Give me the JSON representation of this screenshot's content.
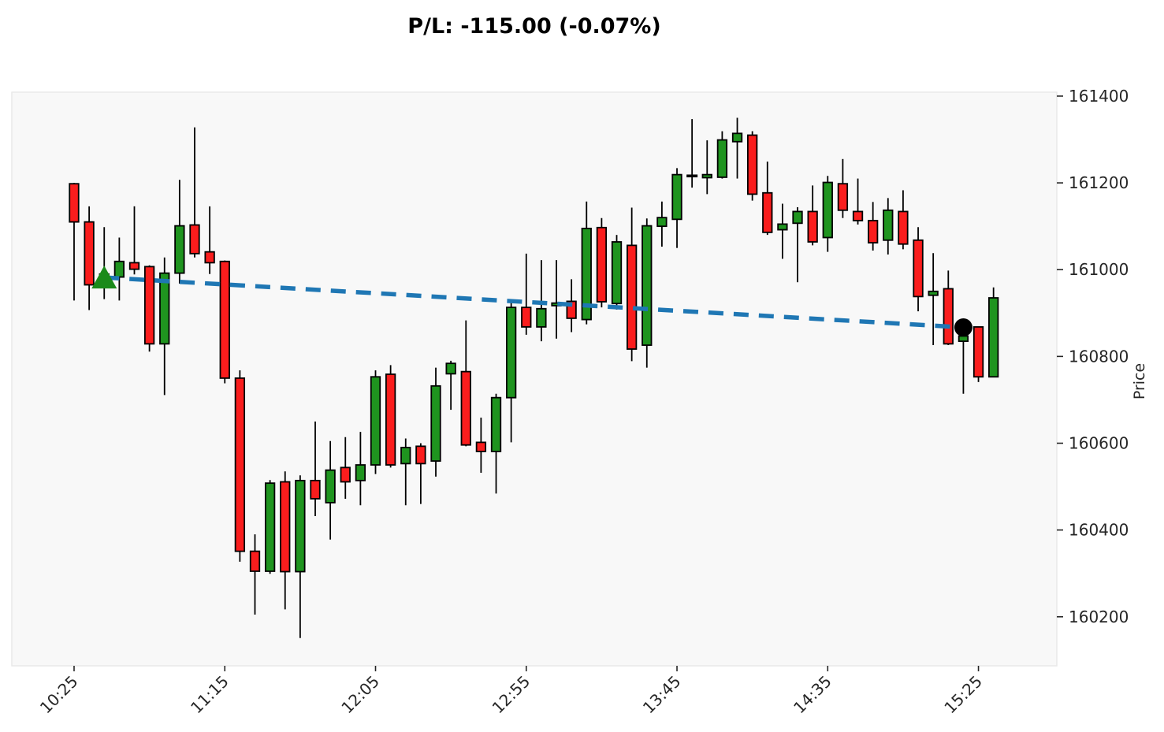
{
  "title": "P/L: -115.00 (-0.07%)",
  "chart_data": {
    "type": "candlestick",
    "title": "P/L: -115.00 (-0.07%)",
    "ylabel": "Price",
    "xlabel": "",
    "grid": false,
    "legend_position": "none",
    "y_ticks": [
      160200,
      160400,
      160600,
      160800,
      161000,
      161200,
      161400
    ],
    "ylim": [
      160087,
      161409
    ],
    "x_tick_labels": [
      "10:25",
      "11:15",
      "12:05",
      "12:55",
      "13:45",
      "14:35",
      "15:25"
    ],
    "times": [
      "10:25",
      "10:30",
      "10:35",
      "10:40",
      "10:45",
      "10:50",
      "10:55",
      "11:00",
      "11:05",
      "11:10",
      "11:15",
      "11:20",
      "11:25",
      "11:30",
      "11:35",
      "11:40",
      "11:45",
      "11:50",
      "11:55",
      "12:00",
      "12:05",
      "12:10",
      "12:15",
      "12:20",
      "12:25",
      "12:30",
      "12:35",
      "12:40",
      "12:45",
      "12:50",
      "12:55",
      "13:00",
      "13:05",
      "13:10",
      "13:15",
      "13:20",
      "13:25",
      "13:30",
      "13:35",
      "13:40",
      "13:45",
      "13:50",
      "13:55",
      "14:00",
      "14:05",
      "14:10",
      "14:15",
      "14:20",
      "14:25",
      "14:30",
      "14:35",
      "14:40",
      "14:45",
      "14:50",
      "14:55",
      "15:00",
      "15:05",
      "15:10",
      "15:15",
      "15:20",
      "15:25",
      "15:30"
    ],
    "ohlc": [
      [
        161198,
        161200,
        160929,
        161110
      ],
      [
        161110,
        161146,
        160907,
        160965
      ],
      [
        160965,
        161098,
        160932,
        160990
      ],
      [
        160983,
        161074,
        160929,
        161019
      ],
      [
        161016,
        161146,
        160989,
        161001
      ],
      [
        161007,
        161010,
        160811,
        160829
      ],
      [
        160829,
        161028,
        160711,
        160992
      ],
      [
        160992,
        161207,
        160968,
        161101
      ],
      [
        161103,
        161328,
        161028,
        161037
      ],
      [
        161041,
        161146,
        160990,
        161016
      ],
      [
        161019,
        161021,
        160738,
        160750
      ],
      [
        160750,
        160768,
        160327,
        160351
      ],
      [
        160351,
        160390,
        160205,
        160305
      ],
      [
        160305,
        160515,
        160299,
        160508
      ],
      [
        160511,
        160535,
        160217,
        160304
      ],
      [
        160304,
        160526,
        160151,
        160514
      ],
      [
        160514,
        160650,
        160432,
        160472
      ],
      [
        160463,
        160605,
        160378,
        160538
      ],
      [
        160544,
        160614,
        160472,
        160511
      ],
      [
        160514,
        160626,
        160457,
        160550
      ],
      [
        160550,
        160768,
        160529,
        160753
      ],
      [
        160759,
        160780,
        160544,
        160550
      ],
      [
        160553,
        160611,
        160457,
        160590
      ],
      [
        160593,
        160600,
        160460,
        160553
      ],
      [
        160559,
        160774,
        160523,
        160732
      ],
      [
        160760,
        160790,
        160677,
        160784
      ],
      [
        160765,
        160883,
        160593,
        160596
      ],
      [
        160602,
        160659,
        160532,
        160581
      ],
      [
        160581,
        160714,
        160484,
        160705
      ],
      [
        160705,
        160932,
        160602,
        160913
      ],
      [
        160913,
        161037,
        160850,
        160868
      ],
      [
        160868,
        161022,
        160835,
        160910
      ],
      [
        160917,
        161022,
        160841,
        160923
      ],
      [
        160927,
        160978,
        160856,
        160888
      ],
      [
        160885,
        161157,
        160874,
        161095
      ],
      [
        161097,
        161119,
        160913,
        160926
      ],
      [
        160922,
        161080,
        160908,
        161064
      ],
      [
        161056,
        161143,
        160789,
        160817
      ],
      [
        160826,
        161118,
        160774,
        161101
      ],
      [
        161100,
        161157,
        161053,
        161120
      ],
      [
        161116,
        161234,
        161050,
        161219
      ],
      [
        161216,
        161347,
        161189,
        161216
      ],
      [
        161212,
        161298,
        161174,
        161219
      ],
      [
        161213,
        161319,
        161210,
        161299
      ],
      [
        161295,
        161350,
        161210,
        161314
      ],
      [
        161310,
        161319,
        161159,
        161174
      ],
      [
        161177,
        161249,
        161080,
        161086
      ],
      [
        161092,
        161152,
        161025,
        161105
      ],
      [
        161107,
        161144,
        160971,
        161134
      ],
      [
        161134,
        161194,
        161056,
        161064
      ],
      [
        161074,
        161216,
        161041,
        161201
      ],
      [
        161198,
        161255,
        161119,
        161137
      ],
      [
        161134,
        161210,
        161104,
        161113
      ],
      [
        161113,
        161156,
        161044,
        161062
      ],
      [
        161068,
        161165,
        161035,
        161137
      ],
      [
        161134,
        161183,
        161047,
        161059
      ],
      [
        161068,
        161098,
        160904,
        160938
      ],
      [
        160941,
        161038,
        160826,
        160950
      ],
      [
        160956,
        160998,
        160826,
        160829
      ],
      [
        160835,
        160880,
        160714,
        160847
      ],
      [
        160868,
        160868,
        160741,
        160753
      ],
      [
        160753,
        160959,
        160753,
        160935
      ]
    ],
    "trade": {
      "entry": {
        "time": "10:35",
        "price": 160982,
        "marker": "triangle-up"
      },
      "exit": {
        "time": "15:20",
        "price": 160867,
        "marker": "circle"
      },
      "pl_points": -115.0,
      "pl_percent": -0.07,
      "line_style": "dashed"
    },
    "colors": {
      "up": "#1f941f",
      "down": "#fa1d1d",
      "doji": "#000000",
      "edge": "#000000",
      "wick": "#000000",
      "trade_line": "#1f77b4",
      "entry_marker": "#1a8a1a",
      "exit_marker": "#000000",
      "plot_bg": "#f8f8f8",
      "fig_bg": "#ffffff",
      "tick_text": "#262626"
    }
  }
}
